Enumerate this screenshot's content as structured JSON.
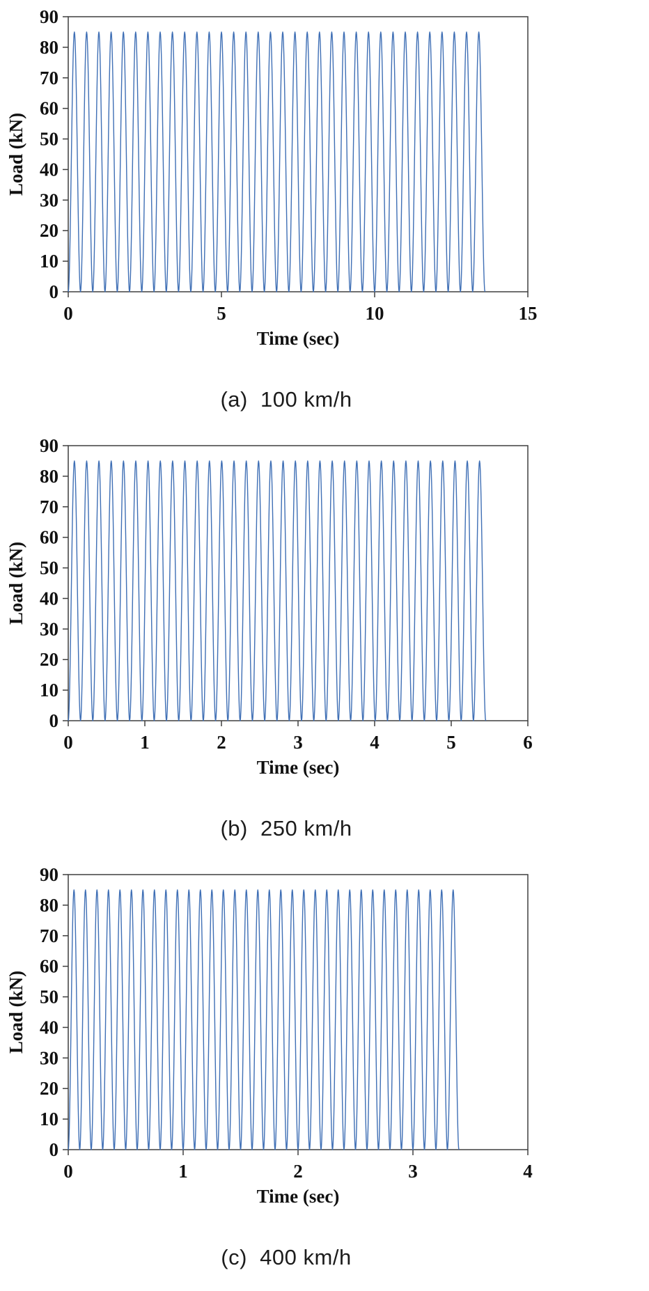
{
  "figure": {
    "background": "#ffffff",
    "axis_color": "#3f3f3f",
    "text_color": "#111111"
  },
  "chart_data": [
    {
      "id": "a",
      "type": "line",
      "caption": "(a)  100 km/h",
      "xlabel": "Time (sec)",
      "ylabel": "Load (kN)",
      "xlim": [
        0,
        15
      ],
      "xticks": [
        0,
        5,
        10,
        15
      ],
      "ylim": [
        0,
        90
      ],
      "yticks": [
        0,
        10,
        20,
        30,
        40,
        50,
        60,
        70,
        80,
        90
      ],
      "line_color": "#3f6fb5",
      "peak_load_kN": 85,
      "min_load_kN": 0,
      "num_cycles": 34,
      "start_time_sec": 0,
      "end_time_sec": 13.6,
      "waveform": "haversine-pulses",
      "grid": false
    },
    {
      "id": "b",
      "type": "line",
      "caption": "(b)  250 km/h",
      "xlabel": "Time (sec)",
      "ylabel": "Load (kN)",
      "xlim": [
        0,
        6
      ],
      "xticks": [
        0,
        1,
        2,
        3,
        4,
        5,
        6
      ],
      "ylim": [
        0,
        90
      ],
      "yticks": [
        0,
        10,
        20,
        30,
        40,
        50,
        60,
        70,
        80,
        90
      ],
      "line_color": "#3f6fb5",
      "peak_load_kN": 85,
      "min_load_kN": 0,
      "num_cycles": 34,
      "start_time_sec": 0,
      "end_time_sec": 5.45,
      "waveform": "haversine-pulses",
      "grid": false
    },
    {
      "id": "c",
      "type": "line",
      "caption": "(c)  400 km/h",
      "xlabel": "Time (sec)",
      "ylabel": "Load (kN)",
      "xlim": [
        0,
        4
      ],
      "xticks": [
        0,
        1,
        2,
        3,
        4
      ],
      "ylim": [
        0,
        90
      ],
      "yticks": [
        0,
        10,
        20,
        30,
        40,
        50,
        60,
        70,
        80,
        90
      ],
      "line_color": "#3f6fb5",
      "peak_load_kN": 85,
      "min_load_kN": 0,
      "num_cycles": 34,
      "start_time_sec": 0,
      "end_time_sec": 3.4,
      "waveform": "haversine-pulses",
      "grid": false
    }
  ]
}
